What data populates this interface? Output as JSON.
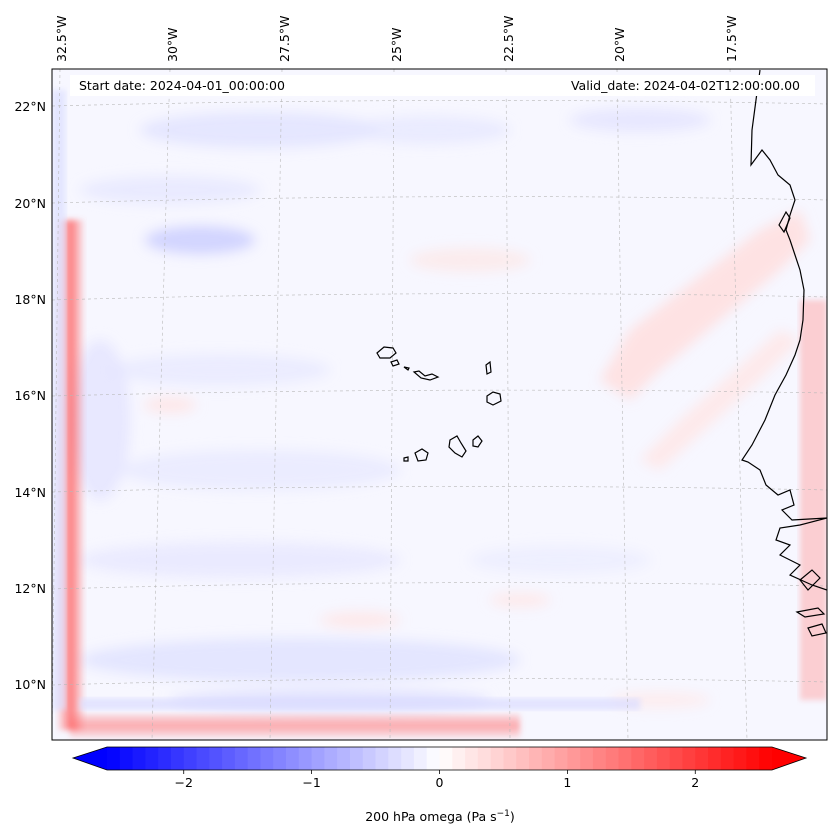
{
  "map": {
    "start_label": "Start date: 2024-04-01_00:00:00",
    "valid_label": "Valid_date: 2024-04-02T12:00:00.00",
    "lon_labels": [
      "32.5°W",
      "30°W",
      "27.5°W",
      "25°W",
      "22.5°W",
      "20°W",
      "17.5°W"
    ],
    "lat_labels": [
      "22°N",
      "20°N",
      "18°N",
      "16°N",
      "14°N",
      "12°N",
      "10°N"
    ]
  },
  "colorbar": {
    "ticks": [
      "−2",
      "−1",
      "0",
      "1",
      "2"
    ],
    "label_main": "200 hPa omega (Pa s",
    "label_exp": "−1",
    "label_end": ")",
    "vmin": -2.6,
    "vmax": 2.6,
    "colors": {
      "neg": "#0000ff",
      "mid": "#ffffff",
      "pos": "#ff0000"
    }
  }
}
